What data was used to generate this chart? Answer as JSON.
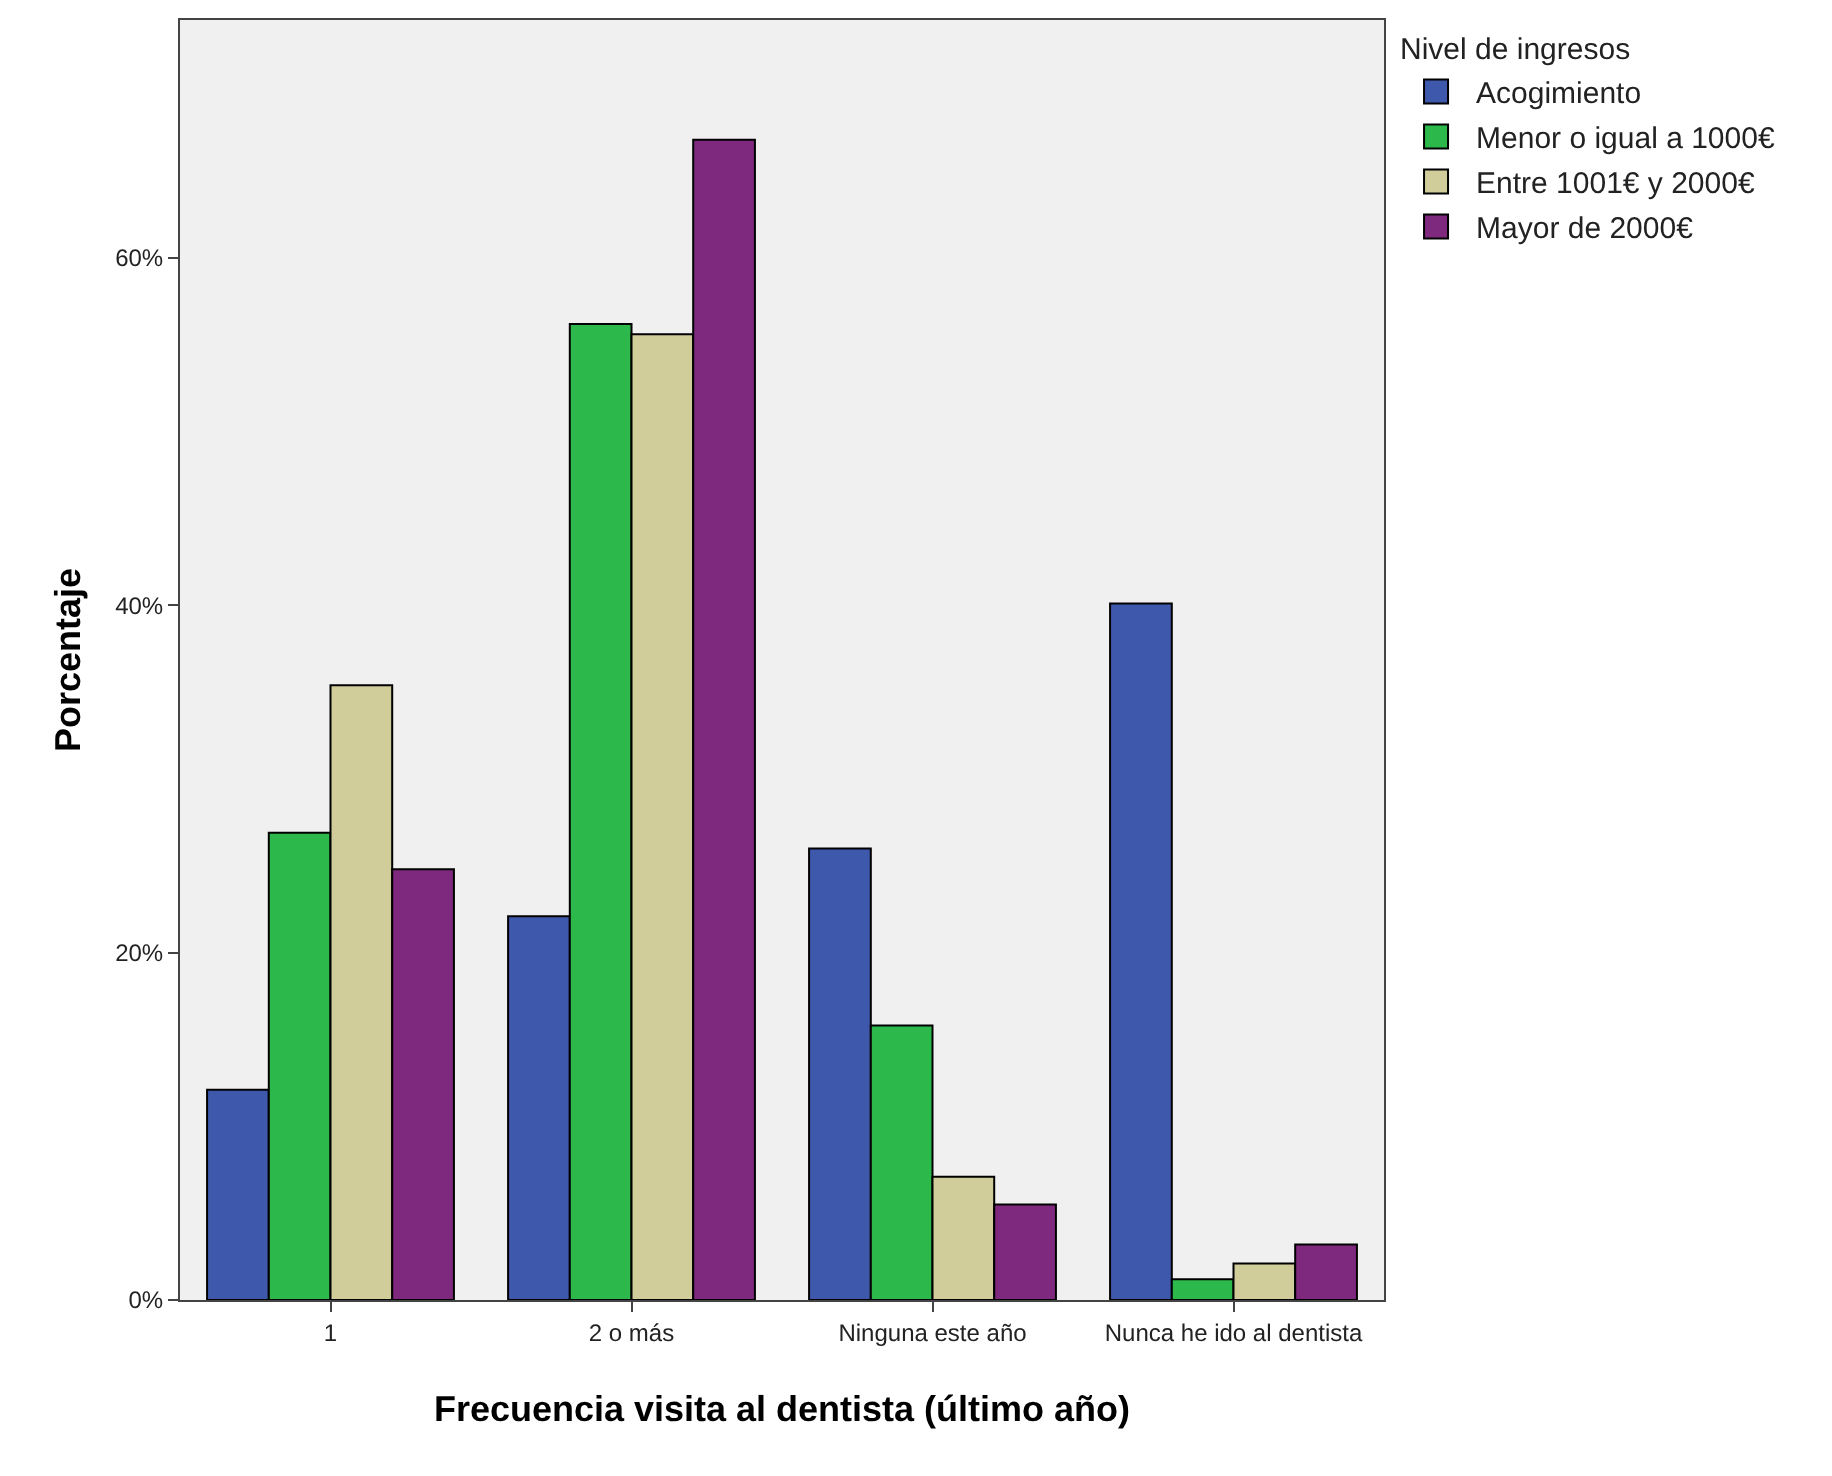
{
  "chart_data": {
    "type": "bar",
    "xlabel": "Frecuencia visita al dentista (último año)",
    "ylabel": "Porcentaje",
    "legend_title": "Nivel de ingresos",
    "legend": "top right",
    "categories": [
      "1",
      "2 o más",
      "Ninguna este año",
      "Nunca he ido al dentista"
    ],
    "series": [
      {
        "name": "Acogimiento",
        "color": "#3e58ac",
        "values": [
          12.1,
          22.1,
          26.0,
          40.1
        ]
      },
      {
        "name": "Menor o igual a 1000€",
        "color": "#2db84b",
        "values": [
          26.9,
          56.2,
          15.8,
          1.2
        ]
      },
      {
        "name": "Entre 1001€ y 2000€",
        "color": "#d1cd9a",
        "values": [
          35.4,
          55.6,
          7.1,
          2.1
        ]
      },
      {
        "name": "Mayor de 2000€",
        "color": "#7e287e",
        "values": [
          24.8,
          66.8,
          5.5,
          3.2
        ]
      }
    ],
    "ylim": [
      0,
      73.7
    ],
    "yticks": [
      {
        "value": 0,
        "label": "0%"
      },
      {
        "value": 20,
        "label": "20%"
      },
      {
        "value": 40,
        "label": "40%"
      },
      {
        "value": 60,
        "label": "60%"
      }
    ],
    "grid": false
  }
}
